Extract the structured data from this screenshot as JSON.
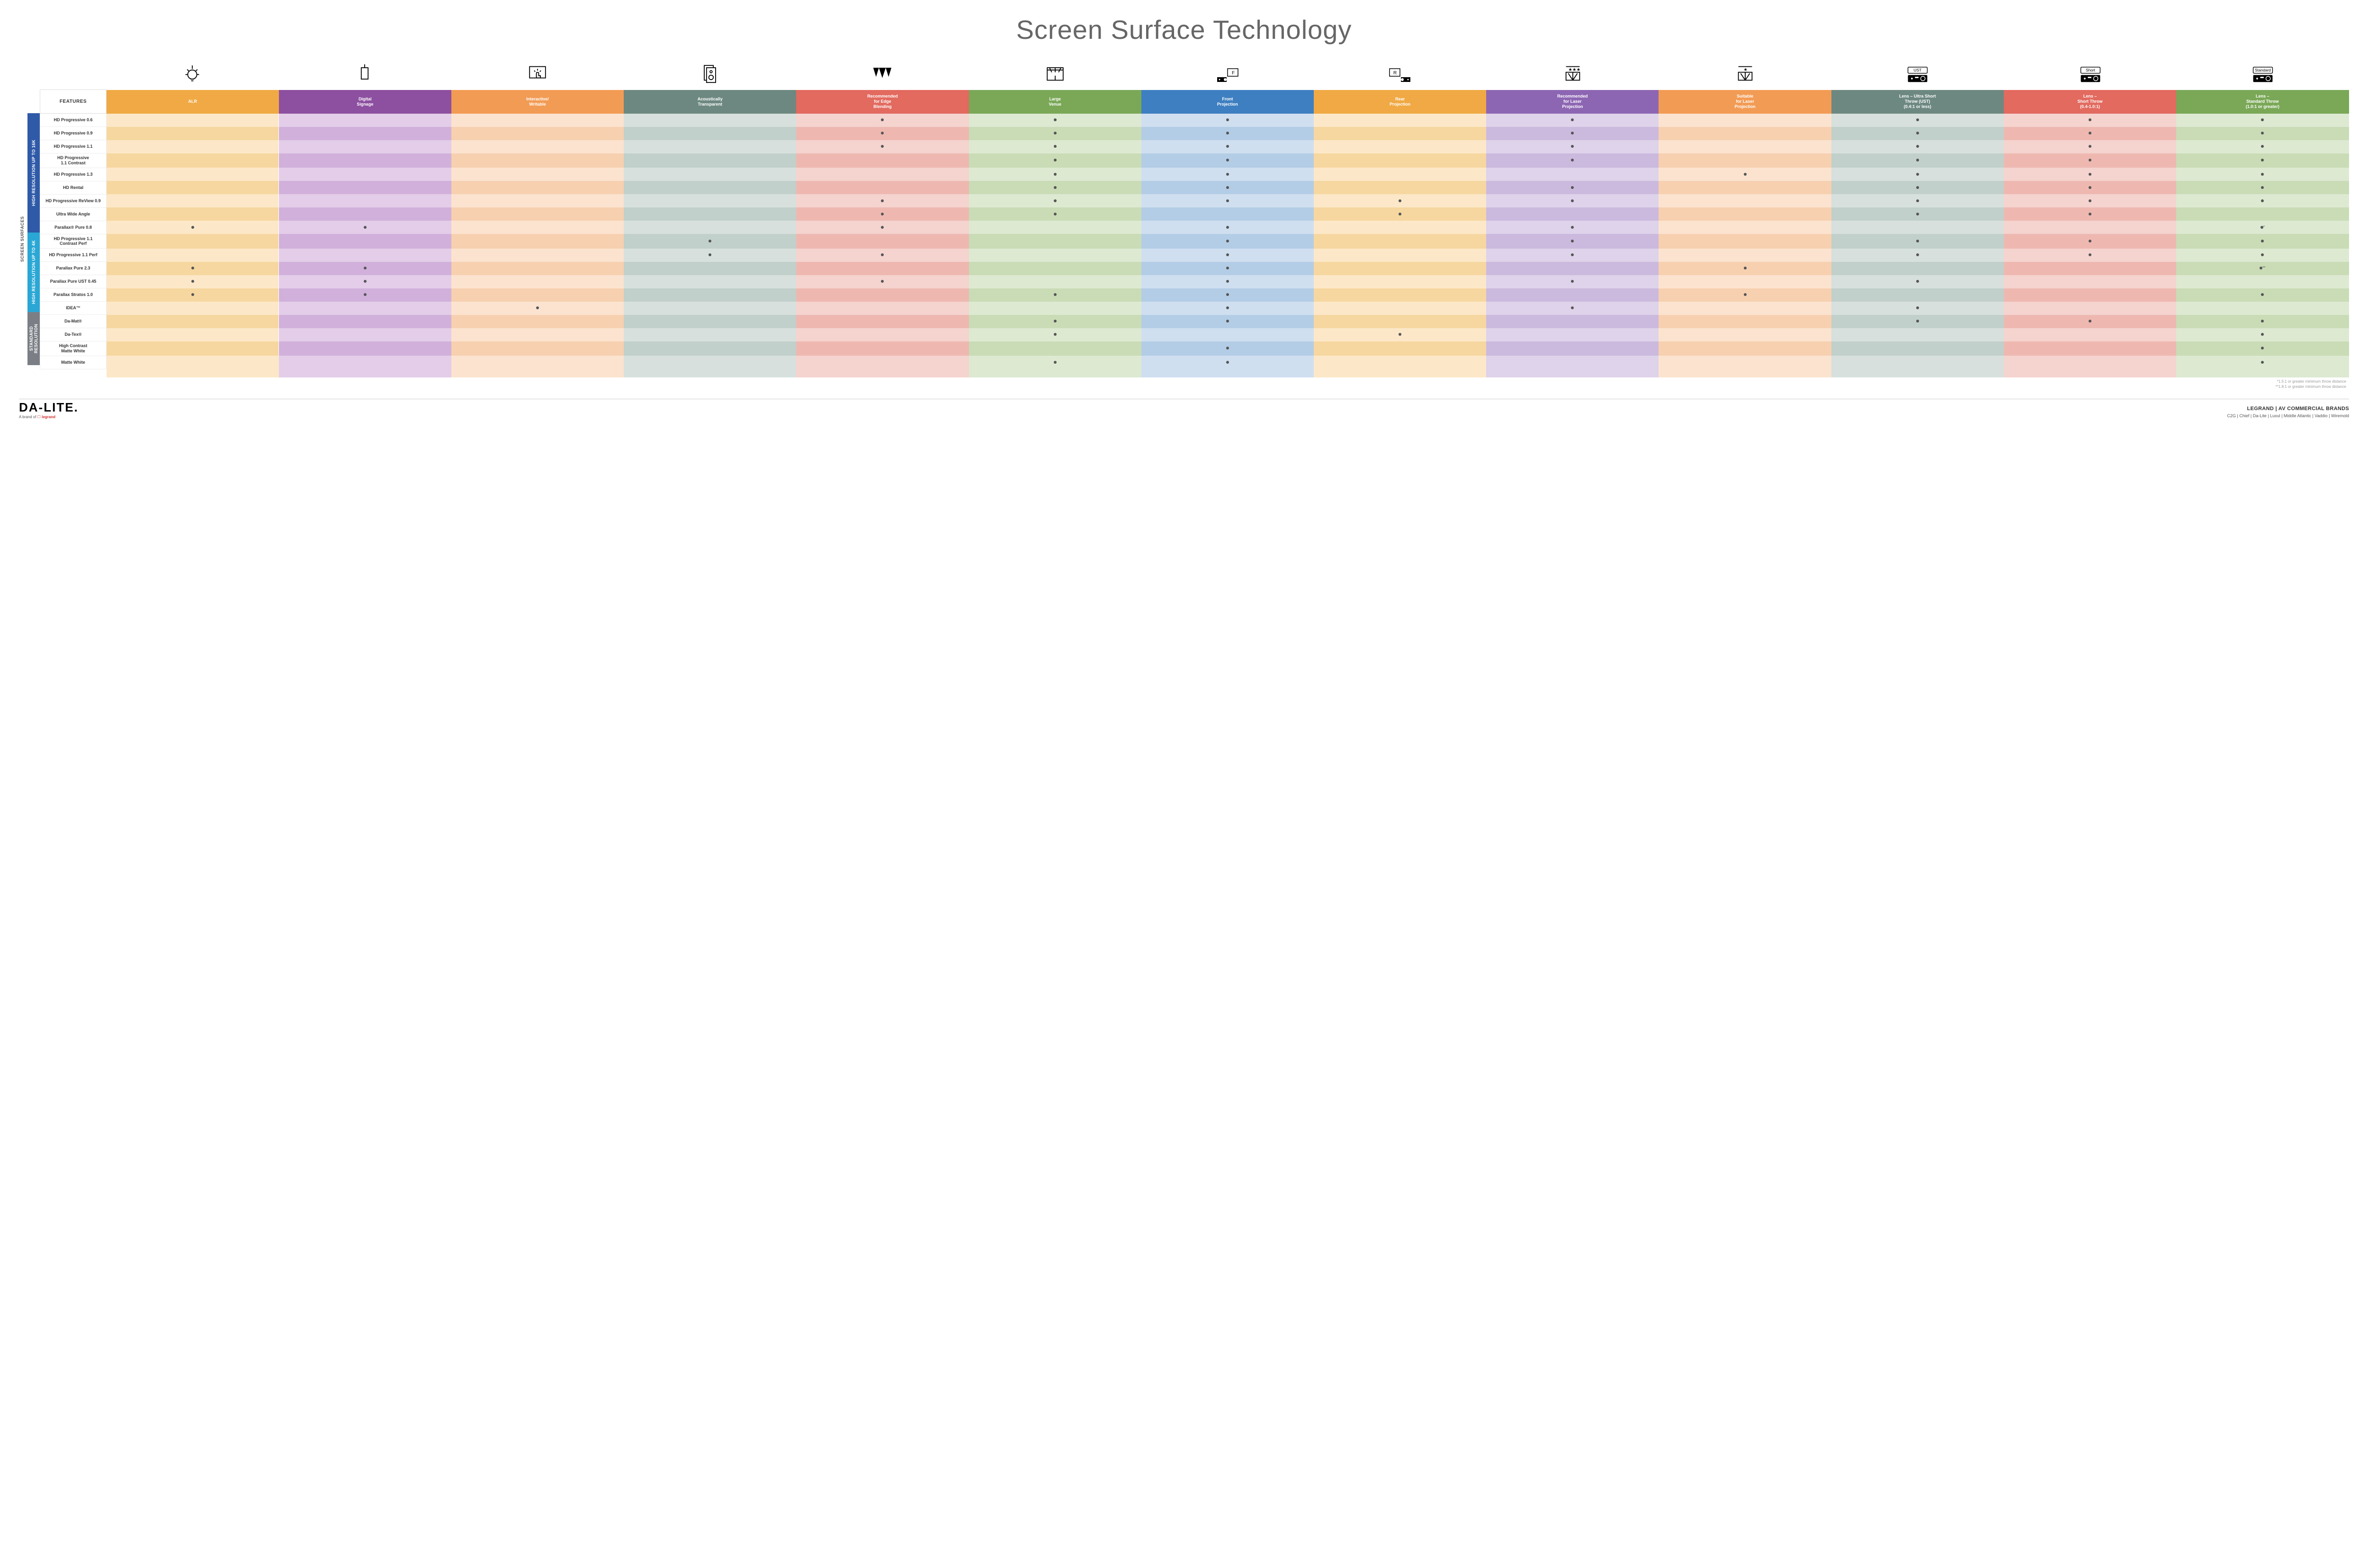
{
  "title": "Screen Surface Technology",
  "featuresHeader": "FEATURES",
  "sideOuterLabel": "SCREEN SURFACES",
  "colors": {
    "alr": {
      "hdr": "#f0a944",
      "light": "#fce8c8",
      "dark": "#f7d7a0"
    },
    "signage": {
      "hdr": "#8d4fa0",
      "light": "#e3cde9",
      "dark": "#d1b0db"
    },
    "writable": {
      "hdr": "#f29b54",
      "light": "#fbe3cf",
      "dark": "#f7d0b0"
    },
    "acoustic": {
      "hdr": "#6d8880",
      "light": "#d7e0dd",
      "dark": "#c1d0cb"
    },
    "edge": {
      "hdr": "#e26a5f",
      "light": "#f5d3cf",
      "dark": "#eeb8b1"
    },
    "large": {
      "hdr": "#7aa857",
      "light": "#dde9d1",
      "dark": "#c9dcb6"
    },
    "front": {
      "hdr": "#3e7fc1",
      "light": "#cfdff0",
      "dark": "#b3cde6"
    },
    "rear": {
      "hdr": "#f0a944",
      "light": "#fce8c8",
      "dark": "#f7d7a0"
    },
    "reclaser": {
      "hdr": "#8d66b3",
      "light": "#ded3ea",
      "dark": "#cbb9de"
    },
    "suitlaser": {
      "hdr": "#f29b54",
      "light": "#fbe3cf",
      "dark": "#f7d0b0"
    },
    "ust": {
      "hdr": "#6d8880",
      "light": "#d7e0dd",
      "dark": "#c1d0cb"
    },
    "short": {
      "hdr": "#e26a5f",
      "light": "#f5d3cf",
      "dark": "#eeb8b1"
    },
    "std": {
      "hdr": "#7aa857",
      "light": "#dde9d1",
      "dark": "#c9dcb6"
    }
  },
  "groupColors": {
    "g16k": "#2e5aa8",
    "g4k": "#2aa7d4",
    "gstd": "#7b7f85"
  },
  "columns": [
    {
      "key": "alr",
      "label": "ALR",
      "icon": "bulb"
    },
    {
      "key": "signage",
      "label": "Digital\nSignage",
      "icon": "signage"
    },
    {
      "key": "writable",
      "label": "Interactive/\nWritable",
      "icon": "touch"
    },
    {
      "key": "acoustic",
      "label": "Acoustically\nTransparent",
      "icon": "speaker"
    },
    {
      "key": "edge",
      "label": "Recommended\nfor Edge\nBlending",
      "icon": "blend"
    },
    {
      "key": "large",
      "label": "Large\nVenue",
      "icon": "venue"
    },
    {
      "key": "front",
      "label": "Front\nProjection",
      "icon": "front"
    },
    {
      "key": "rear",
      "label": "Rear\nProjection",
      "icon": "rear"
    },
    {
      "key": "reclaser",
      "label": "Recommended\nfor Laser\nProjection",
      "icon": "reclaser"
    },
    {
      "key": "suitlaser",
      "label": "Suitable\nfor Laser\nProjection",
      "icon": "suitlaser"
    },
    {
      "key": "ust",
      "label": "Lens – Ultra Short\nThrow (UST)\n(0.4:1 or less)",
      "icon": "ust"
    },
    {
      "key": "short",
      "label": "Lens –\nShort Throw\n(0.4-1.0:1)",
      "icon": "short"
    },
    {
      "key": "std",
      "label": "Lens –\nStandard Throw\n(1.0:1 or greater)",
      "icon": "std"
    }
  ],
  "groups": [
    {
      "key": "g16k",
      "label": "HIGH RESOLUTION UP TO 16K",
      "rows": [
        {
          "label": "HD Progressive 0.6",
          "dots": [
            "edge",
            "large",
            "front",
            "reclaser",
            "ust",
            "short",
            "std"
          ]
        },
        {
          "label": "HD Progressive 0.9",
          "dots": [
            "edge",
            "large",
            "front",
            "reclaser",
            "ust",
            "short",
            "std"
          ]
        },
        {
          "label": "HD Progressive 1.1",
          "dots": [
            "edge",
            "large",
            "front",
            "reclaser",
            "ust",
            "short",
            "std"
          ]
        },
        {
          "label": "HD Progressive\n1.1 Contrast",
          "dots": [
            "large",
            "front",
            "reclaser",
            "ust",
            "short",
            "std"
          ]
        },
        {
          "label": "HD Progressive 1.3",
          "dots": [
            "large",
            "front",
            "suitlaser",
            "ust",
            "short",
            "std"
          ]
        },
        {
          "label": "HD Rental",
          "dots": [
            "large",
            "front",
            "reclaser",
            "ust",
            "short",
            "std"
          ]
        },
        {
          "label": "HD Progressive ReView 0.9",
          "dots": [
            "edge",
            "large",
            "front",
            "rear",
            "reclaser",
            "ust",
            "short",
            "std"
          ]
        },
        {
          "label": "Ultra Wide Angle",
          "dots": [
            "edge",
            "large",
            "rear",
            "ust",
            "short"
          ]
        },
        {
          "label": "Parallax® Pure 0.8",
          "dots": [
            "alr",
            "signage",
            "edge",
            "front",
            "reclaser"
          ],
          "note": {
            "std": "*"
          }
        }
      ]
    },
    {
      "key": "g4k",
      "label": "HIGH RESOLUTION UP TO 4K",
      "rows": [
        {
          "label": "HD Progressive 1.1\nContrast Perf",
          "dots": [
            "acoustic",
            "front",
            "reclaser",
            "ust",
            "short",
            "std"
          ]
        },
        {
          "label": "HD Progressive 1.1 Perf",
          "dots": [
            "acoustic",
            "edge",
            "front",
            "reclaser",
            "ust",
            "short",
            "std"
          ]
        },
        {
          "label": "Parallax Pure 2.3",
          "dots": [
            "alr",
            "signage",
            "front",
            "suitlaser"
          ],
          "note": {
            "std": "**"
          }
        },
        {
          "label": "Parallax Pure UST 0.45",
          "dots": [
            "alr",
            "signage",
            "edge",
            "front",
            "reclaser",
            "ust"
          ]
        },
        {
          "label": "Parallax Stratos 1.0",
          "dots": [
            "alr",
            "signage",
            "large",
            "front",
            "suitlaser",
            "std"
          ]
        },
        {
          "label": "IDEA™",
          "dots": [
            "writable",
            "front",
            "reclaser",
            "ust"
          ]
        }
      ]
    },
    {
      "key": "gstd",
      "label": "STANDARD\nRESOLUTION",
      "rows": [
        {
          "label": "Da-Mat®",
          "dots": [
            "large",
            "front",
            "ust",
            "short",
            "std"
          ]
        },
        {
          "label": "Da-Tex®",
          "dots": [
            "large",
            "rear",
            "std"
          ]
        },
        {
          "label": "High Contrast\nMatte White",
          "dots": [
            "front",
            "std"
          ]
        },
        {
          "label": "Matte White",
          "dots": [
            "large",
            "front",
            "std"
          ]
        }
      ]
    }
  ],
  "footnotes": [
    "*1.5:1 or greater minimum throw distance",
    "**1.8:1 or greater minimum throw distance"
  ],
  "footer": {
    "logoMain": "DA-LITE.",
    "logoSubPrefix": "A brand of ",
    "logoSubBrand": "legrand",
    "brandsTitle": "LEGRAND | AV COMMERCIAL BRANDS",
    "brandsList": "C2G  |  Chief  |  Da-Lite  |  Luxul  |  Middle Atlantic  |  Vaddio  |  Wiremold"
  }
}
